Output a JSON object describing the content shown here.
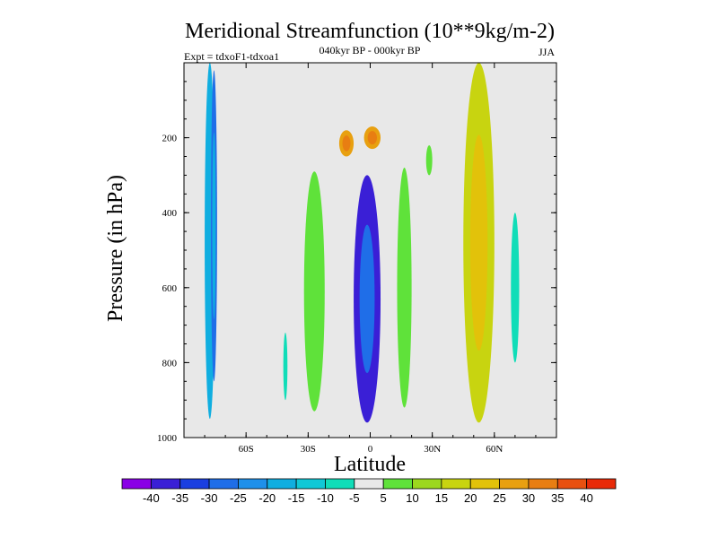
{
  "chart_data": {
    "type": "contour",
    "title": "Meridional Streamfunction (10**9kg/m-2)",
    "subtitle": "040kyr BP - 000kyr BP",
    "expt_label": "Expt = tdxoF1-tdxoa1",
    "season": "JJA",
    "xlabel": "Latitude",
    "ylabel": "Pressure (in hPa)",
    "xlim": [
      -90,
      90
    ],
    "ylim": [
      1000,
      0
    ],
    "x_ticks": [
      {
        "value": -60,
        "label": "60S"
      },
      {
        "value": -30,
        "label": "30S"
      },
      {
        "value": 0,
        "label": "0"
      },
      {
        "value": 30,
        "label": "30N"
      },
      {
        "value": 60,
        "label": "60N"
      }
    ],
    "y_ticks": [
      {
        "value": 200,
        "label": "200"
      },
      {
        "value": 400,
        "label": "400"
      },
      {
        "value": 600,
        "label": "600"
      },
      {
        "value": 800,
        "label": "800"
      },
      {
        "value": 1000,
        "label": "1000"
      }
    ],
    "background_color": "#e8e8e8",
    "levels": [
      {
        "label": "-40",
        "color": "#8a00e6"
      },
      {
        "label": "-35",
        "color": "#3a1fd6"
      },
      {
        "label": "-30",
        "color": "#1a3fe0"
      },
      {
        "label": "-25",
        "color": "#1f6ee8"
      },
      {
        "label": "-20",
        "color": "#1e90ea"
      },
      {
        "label": "-15",
        "color": "#10aee0"
      },
      {
        "label": "-10",
        "color": "#10c8d6"
      },
      {
        "label": "-5",
        "color": "#10ddb8"
      },
      {
        "label": "5",
        "color": "#e8e8e8"
      },
      {
        "label": "10",
        "color": "#5fe23a"
      },
      {
        "label": "15",
        "color": "#9cd81e"
      },
      {
        "label": "20",
        "color": "#c8d410"
      },
      {
        "label": "25",
        "color": "#e2c20a"
      },
      {
        "label": "30",
        "color": "#e8a010"
      },
      {
        "label": "35",
        "color": "#e87e12"
      },
      {
        "label": "40",
        "color": "#e85010"
      },
      {
        "label": "",
        "color": "#e82a08"
      }
    ],
    "features": [
      {
        "name": "sh-polar-band",
        "lat": [
          -80,
          -75
        ],
        "p": [
          0,
          950
        ],
        "value": -15
      },
      {
        "name": "sh-polar-core",
        "lat": [
          -77,
          -74
        ],
        "p": [
          20,
          850
        ],
        "value": -25
      },
      {
        "name": "sh-midlat-strip",
        "lat": [
          -42,
          -40
        ],
        "p": [
          720,
          900
        ],
        "value": -5
      },
      {
        "name": "sh-subtropic-band",
        "lat": [
          -32,
          -22
        ],
        "p": [
          290,
          930
        ],
        "value": 10
      },
      {
        "name": "nh-subtropic-band",
        "lat": [
          13,
          20
        ],
        "p": [
          280,
          920
        ],
        "value": 10
      },
      {
        "name": "nh-midlat-strip",
        "lat": [
          27,
          30
        ],
        "p": [
          220,
          300
        ],
        "value": 10
      },
      {
        "name": "nh-jet-band",
        "lat": [
          45,
          60
        ],
        "p": [
          0,
          960
        ],
        "value": 20
      },
      {
        "name": "nh-polar-strip",
        "lat": [
          68,
          72
        ],
        "p": [
          400,
          800
        ],
        "value": -5
      },
      {
        "name": "upper-jet-south",
        "lat": [
          -15,
          -8
        ],
        "p": [
          180,
          250
        ],
        "value": 30
      },
      {
        "name": "upper-jet-north",
        "lat": [
          -3,
          5
        ],
        "p": [
          170,
          230
        ],
        "value": 30
      },
      {
        "name": "equatorial-cell",
        "lat": [
          -8,
          5
        ],
        "p": [
          300,
          960
        ],
        "value": -35
      }
    ]
  }
}
